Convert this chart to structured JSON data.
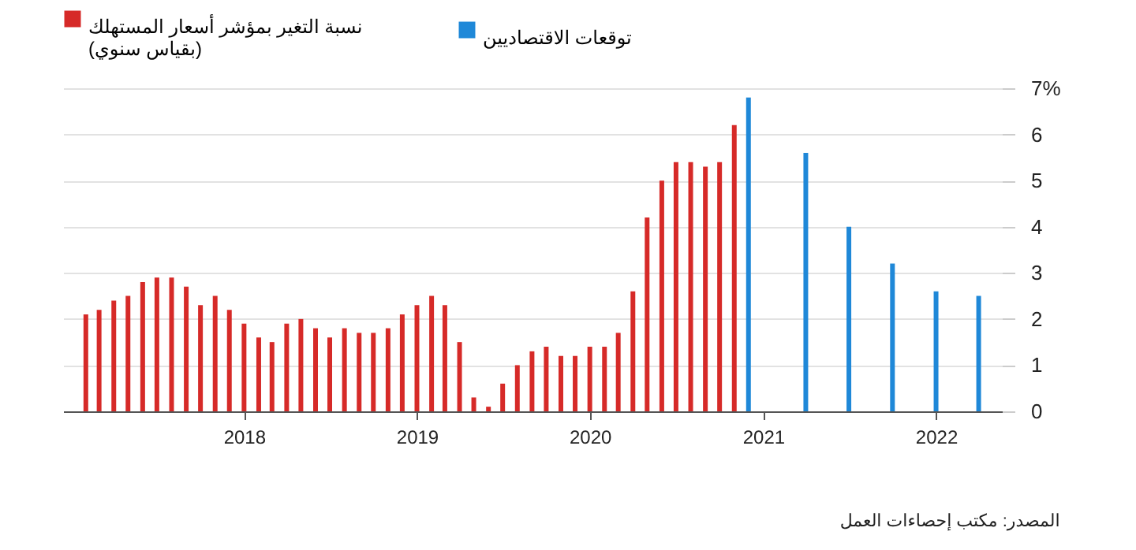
{
  "chart_data": {
    "type": "bar",
    "annotations": [
      "المصدر: مكتب إحصاءات العمل"
    ],
    "series": [
      {
        "name": "نسبة التغير بمؤشر أسعار المستهلك\n(بقياس سنوي)",
        "color": "#d62a28",
        "x": [
          "2017-02",
          "2017-03",
          "2017-04",
          "2017-05",
          "2017-06",
          "2017-07",
          "2017-08",
          "2017-09",
          "2017-10",
          "2017-11",
          "2017-12",
          "2018-01",
          "2018-02",
          "2018-03",
          "2018-04",
          "2018-05",
          "2018-06",
          "2018-07",
          "2018-08",
          "2018-09",
          "2018-10",
          "2018-11",
          "2018-12",
          "2019-01",
          "2019-02",
          "2019-03",
          "2019-04",
          "2019-05",
          "2019-06",
          "2019-07",
          "2019-08",
          "2019-09",
          "2019-10",
          "2019-11",
          "2019-12",
          "2020-01",
          "2020-02",
          "2020-03",
          "2020-04",
          "2020-05",
          "2020-06",
          "2020-07",
          "2020-08",
          "2020-09",
          "2020-10",
          "2020-11"
        ],
        "values": [
          2.1,
          2.2,
          2.4,
          2.5,
          2.8,
          2.9,
          2.9,
          2.7,
          2.3,
          2.5,
          2.2,
          1.9,
          1.6,
          1.5,
          1.9,
          2.0,
          1.8,
          1.6,
          1.8,
          1.7,
          1.7,
          1.8,
          2.1,
          2.3,
          2.5,
          2.3,
          1.5,
          0.3,
          0.1,
          0.6,
          1.0,
          1.3,
          1.4,
          1.2,
          1.2,
          1.4,
          1.4,
          1.7,
          2.6,
          4.2,
          5.0,
          5.4,
          5.4,
          5.3,
          5.4,
          6.2
        ]
      },
      {
        "name": "توقعات الاقتصاديين",
        "color": "#1f88d8",
        "x": [
          "2020-12",
          "2021-04",
          "2021-07",
          "2021-10",
          "2022-01",
          "2022-04"
        ],
        "values": [
          6.8,
          5.6,
          4.0,
          3.2,
          2.6,
          2.5
        ]
      }
    ],
    "xlim": [
      "2016-12-15",
      "2022-05-20"
    ],
    "xticks": [
      "2018",
      "2019",
      "2020",
      "2021",
      "2022"
    ],
    "ylim": [
      0,
      7
    ],
    "yticks": [
      0,
      1,
      2,
      3,
      4,
      5,
      6,
      {
        "value": 7,
        "label": "7%"
      }
    ],
    "grid": "y",
    "legend": "top left"
  }
}
